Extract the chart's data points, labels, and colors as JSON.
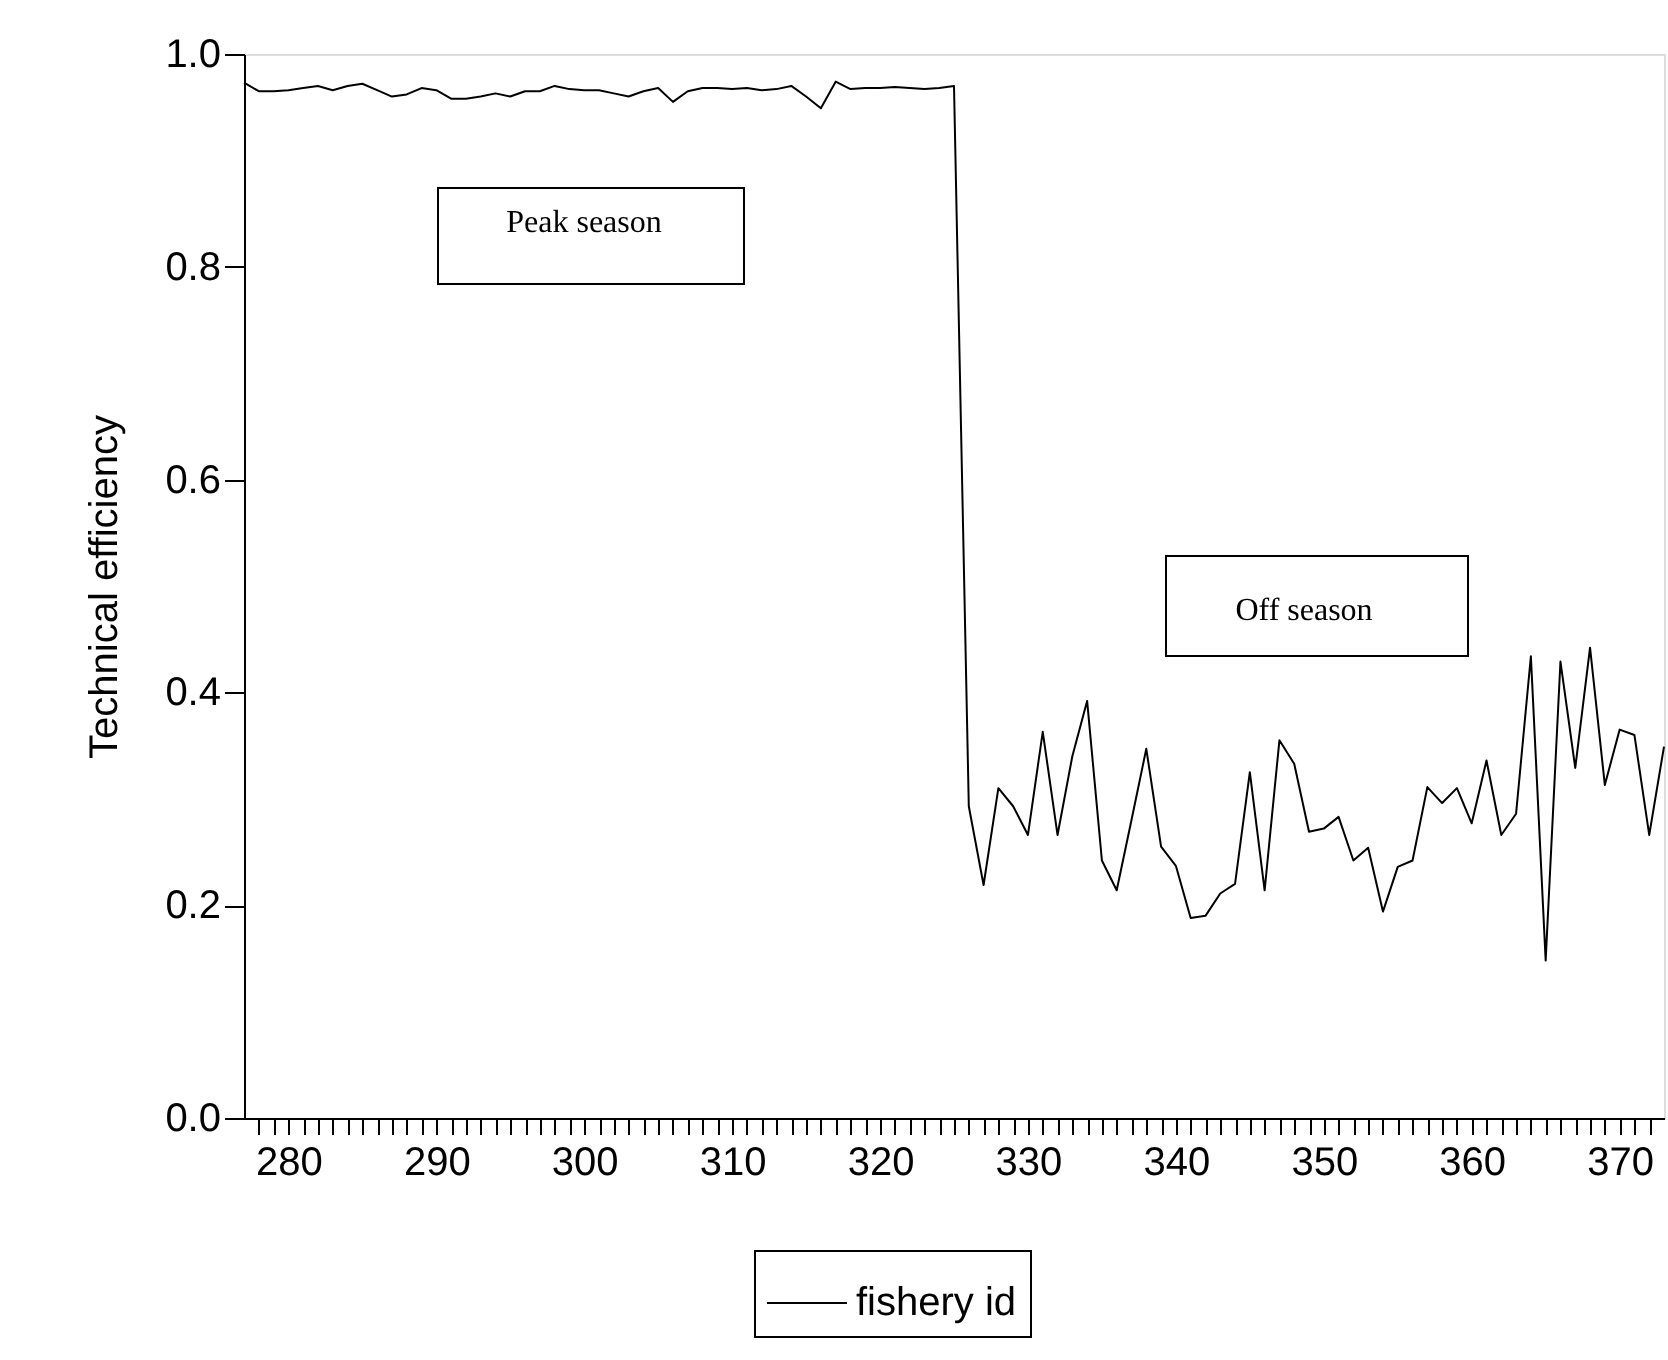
{
  "chart_data": {
    "type": "line",
    "xlabel": null,
    "ylabel": "Technical efficiency",
    "x": [
      277,
      278,
      279,
      280,
      281,
      282,
      283,
      284,
      285,
      286,
      287,
      288,
      289,
      290,
      291,
      292,
      293,
      294,
      295,
      296,
      297,
      298,
      299,
      300,
      301,
      302,
      303,
      304,
      305,
      306,
      307,
      308,
      309,
      310,
      311,
      312,
      313,
      314,
      315,
      316,
      317,
      318,
      319,
      320,
      321,
      322,
      323,
      324,
      325,
      326,
      327,
      328,
      329,
      330,
      331,
      332,
      333,
      334,
      335,
      336,
      337,
      338,
      339,
      340,
      341,
      342,
      343,
      344,
      345,
      346,
      347,
      348,
      349,
      350,
      351,
      352,
      353,
      354,
      355,
      356,
      357,
      358,
      359,
      360,
      361,
      362,
      363,
      364,
      365,
      366,
      367,
      368,
      369,
      370,
      371,
      372,
      373
    ],
    "series": [
      {
        "name": "fishery id",
        "color": "#000000",
        "values": [
          0.973,
          0.965,
          0.965,
          0.966,
          0.968,
          0.97,
          0.966,
          0.97,
          0.972,
          0.966,
          0.96,
          0.962,
          0.968,
          0.966,
          0.958,
          0.958,
          0.96,
          0.963,
          0.96,
          0.965,
          0.965,
          0.97,
          0.967,
          0.966,
          0.966,
          0.963,
          0.96,
          0.965,
          0.968,
          0.955,
          0.965,
          0.968,
          0.968,
          0.967,
          0.968,
          0.966,
          0.967,
          0.97,
          0.96,
          0.949,
          0.974,
          0.967,
          0.968,
          0.968,
          0.969,
          0.968,
          0.967,
          0.968,
          0.97,
          0.293,
          0.219,
          0.31,
          0.293,
          0.266,
          0.363,
          0.266,
          0.34,
          0.392,
          0.242,
          0.214,
          0.28,
          0.347,
          0.255,
          0.237,
          0.188,
          0.19,
          0.211,
          0.22,
          0.325,
          0.214,
          0.355,
          0.333,
          0.269,
          0.272,
          0.283,
          0.242,
          0.254,
          0.194,
          0.236,
          0.242,
          0.311,
          0.296,
          0.31,
          0.277,
          0.336,
          0.266,
          0.286,
          0.434,
          0.148,
          0.429,
          0.329,
          0.442,
          0.313,
          0.365,
          0.36,
          0.266,
          0.349
        ]
      }
    ],
    "xlim": [
      277,
      373
    ],
    "xticks": [
      280,
      290,
      300,
      310,
      320,
      330,
      340,
      350,
      360,
      370,
      {
        "value": 278,
        "label": null
      },
      {
        "value": 279,
        "label": null
      },
      {
        "value": 281,
        "label": null
      },
      {
        "value": 282,
        "label": null
      },
      {
        "value": 283,
        "label": null
      },
      {
        "value": 284,
        "label": null
      },
      {
        "value": 285,
        "label": null
      },
      {
        "value": 286,
        "label": null
      },
      {
        "value": 287,
        "label": null
      },
      {
        "value": 288,
        "label": null
      },
      {
        "value": 289,
        "label": null
      },
      {
        "value": 291,
        "label": null
      },
      {
        "value": 292,
        "label": null
      },
      {
        "value": 293,
        "label": null
      },
      {
        "value": 294,
        "label": null
      },
      {
        "value": 295,
        "label": null
      },
      {
        "value": 296,
        "label": null
      },
      {
        "value": 297,
        "label": null
      },
      {
        "value": 298,
        "label": null
      },
      {
        "value": 299,
        "label": null
      },
      {
        "value": 301,
        "label": null
      },
      {
        "value": 302,
        "label": null
      },
      {
        "value": 303,
        "label": null
      },
      {
        "value": 304,
        "label": null
      },
      {
        "value": 305,
        "label": null
      },
      {
        "value": 306,
        "label": null
      },
      {
        "value": 307,
        "label": null
      },
      {
        "value": 308,
        "label": null
      },
      {
        "value": 309,
        "label": null
      },
      {
        "value": 311,
        "label": null
      },
      {
        "value": 312,
        "label": null
      },
      {
        "value": 313,
        "label": null
      },
      {
        "value": 314,
        "label": null
      },
      {
        "value": 315,
        "label": null
      },
      {
        "value": 316,
        "label": null
      },
      {
        "value": 317,
        "label": null
      },
      {
        "value": 318,
        "label": null
      },
      {
        "value": 319,
        "label": null
      },
      {
        "value": 321,
        "label": null
      },
      {
        "value": 322,
        "label": null
      },
      {
        "value": 323,
        "label": null
      },
      {
        "value": 324,
        "label": null
      },
      {
        "value": 325,
        "label": null
      },
      {
        "value": 326,
        "label": null
      },
      {
        "value": 327,
        "label": null
      },
      {
        "value": 328,
        "label": null
      },
      {
        "value": 329,
        "label": null
      },
      {
        "value": 331,
        "label": null
      },
      {
        "value": 332,
        "label": null
      },
      {
        "value": 333,
        "label": null
      },
      {
        "value": 334,
        "label": null
      },
      {
        "value": 335,
        "label": null
      },
      {
        "value": 336,
        "label": null
      },
      {
        "value": 337,
        "label": null
      },
      {
        "value": 338,
        "label": null
      },
      {
        "value": 339,
        "label": null
      },
      {
        "value": 341,
        "label": null
      },
      {
        "value": 342,
        "label": null
      },
      {
        "value": 343,
        "label": null
      },
      {
        "value": 344,
        "label": null
      },
      {
        "value": 345,
        "label": null
      },
      {
        "value": 346,
        "label": null
      },
      {
        "value": 347,
        "label": null
      },
      {
        "value": 348,
        "label": null
      },
      {
        "value": 349,
        "label": null
      },
      {
        "value": 351,
        "label": null
      },
      {
        "value": 352,
        "label": null
      },
      {
        "value": 353,
        "label": null
      },
      {
        "value": 354,
        "label": null
      },
      {
        "value": 355,
        "label": null
      },
      {
        "value": 356,
        "label": null
      },
      {
        "value": 357,
        "label": null
      },
      {
        "value": 358,
        "label": null
      },
      {
        "value": 359,
        "label": null
      },
      {
        "value": 361,
        "label": null
      },
      {
        "value": 362,
        "label": null
      },
      {
        "value": 363,
        "label": null
      },
      {
        "value": 364,
        "label": null
      },
      {
        "value": 365,
        "label": null
      },
      {
        "value": 366,
        "label": null
      },
      {
        "value": 367,
        "label": null
      },
      {
        "value": 368,
        "label": null
      },
      {
        "value": 369,
        "label": null
      },
      {
        "value": 371,
        "label": null
      },
      {
        "value": 372,
        "label": null
      }
    ],
    "ylim": [
      0,
      1
    ],
    "yticks": [
      {
        "value": 0,
        "label": "0.0"
      },
      {
        "value": 0.2,
        "label": "0.2"
      },
      {
        "value": 0.4,
        "label": "0.4"
      },
      {
        "value": 0.6,
        "label": "0.6"
      },
      {
        "value": 0.8,
        "label": "0.8"
      },
      {
        "value": 1,
        "label": "1.0"
      }
    ],
    "annotations": [
      "Peak season",
      "Off season"
    ],
    "legend": "bottom",
    "grid": false,
    "marker": "none",
    "line_style": "solid"
  }
}
